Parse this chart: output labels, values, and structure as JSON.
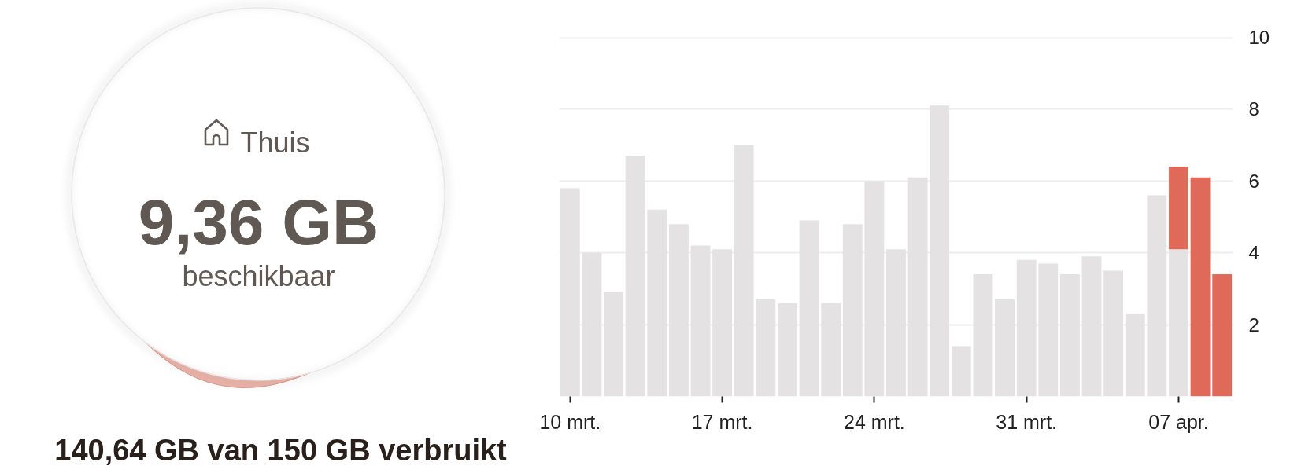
{
  "chart_data": [
    {
      "type": "other",
      "title": "Thuis",
      "annotations": [
        "9,36 GB",
        "beschikbaar",
        "140,64 GB van 150 GB verbruikt"
      ]
    },
    {
      "type": "bar",
      "stacked": true,
      "categories": [
        "10 mrt.",
        null,
        null,
        null,
        null,
        null,
        null,
        "17 mrt.",
        null,
        null,
        null,
        null,
        null,
        null,
        "24 mrt.",
        null,
        null,
        null,
        null,
        null,
        null,
        "31 mrt.",
        null,
        null,
        null,
        null,
        null,
        null,
        "07 apr.",
        null,
        null
      ],
      "series": [
        {
          "color": "#e4e2e3",
          "values": [
            5.8,
            4.0,
            2.9,
            6.7,
            5.2,
            4.8,
            4.2,
            4.1,
            7.0,
            2.7,
            2.6,
            4.9,
            2.6,
            4.8,
            6.0,
            4.1,
            6.1,
            8.1,
            1.4,
            3.4,
            2.7,
            3.8,
            3.7,
            3.4,
            3.9,
            3.5,
            2.3,
            5.6,
            4.1,
            null,
            null
          ]
        },
        {
          "color": "#e06a5a",
          "values": [
            null,
            null,
            null,
            null,
            null,
            null,
            null,
            null,
            null,
            null,
            null,
            null,
            null,
            null,
            null,
            null,
            null,
            null,
            null,
            null,
            null,
            null,
            null,
            null,
            null,
            null,
            null,
            null,
            2.3,
            6.1,
            3.4
          ]
        }
      ],
      "ylim": [
        0,
        10
      ],
      "yticks": [
        2,
        4,
        6,
        8,
        10
      ],
      "grid": "y"
    }
  ]
}
